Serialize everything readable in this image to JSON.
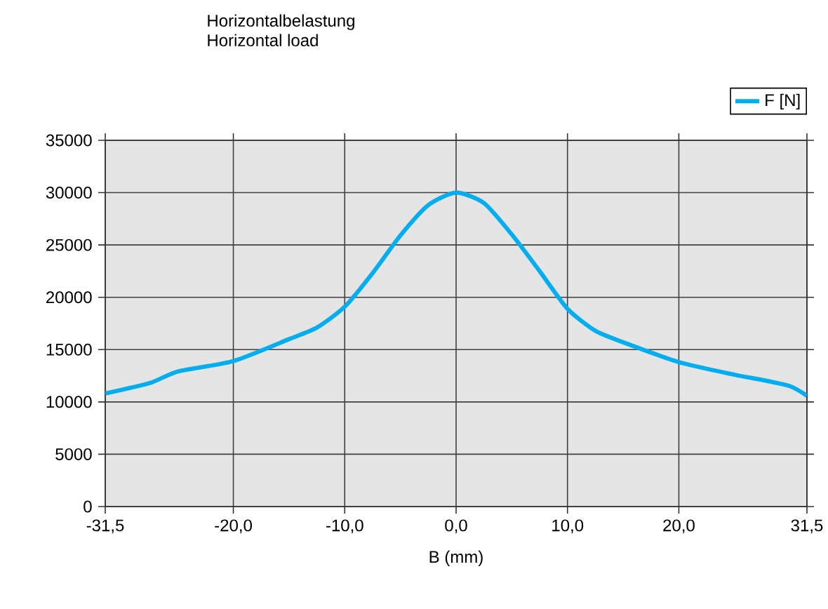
{
  "chart_data": {
    "type": "line",
    "title": "Horizontalbelastung",
    "subtitle": "Horizontal load",
    "xlabel": "B (mm)",
    "series": [
      {
        "name": "F [N]",
        "color": "#00aeef",
        "x": [
          -31.5,
          -27.5,
          -25,
          -20,
          -15,
          -12.5,
          -10,
          -7.5,
          -5,
          -2.5,
          0,
          2.5,
          5,
          7.5,
          10,
          12.5,
          15,
          20,
          25,
          27.5,
          30,
          31.5
        ],
        "values": [
          10800,
          11800,
          12900,
          13900,
          16000,
          17100,
          19100,
          22300,
          25900,
          28800,
          30000,
          29000,
          26000,
          22500,
          18900,
          16800,
          15700,
          13800,
          12600,
          12100,
          11500,
          10600
        ]
      }
    ],
    "xlim": [
      -31.5,
      31.5
    ],
    "xticks": [
      {
        "value": -31.5,
        "label": "-31,5"
      },
      {
        "value": -20,
        "label": "-20,0"
      },
      {
        "value": -10,
        "label": "-10,0"
      },
      {
        "value": 0,
        "label": "0,0"
      },
      {
        "value": 10,
        "label": "10,0"
      },
      {
        "value": 20,
        "label": "20,0"
      },
      {
        "value": 31.5,
        "label": "31,5"
      }
    ],
    "ylim": [
      0,
      35000
    ],
    "yticks": [
      0,
      5000,
      10000,
      15000,
      20000,
      25000,
      30000,
      35000
    ],
    "grid": true,
    "legend": "top right",
    "marker": "none",
    "line_style": "solid"
  }
}
